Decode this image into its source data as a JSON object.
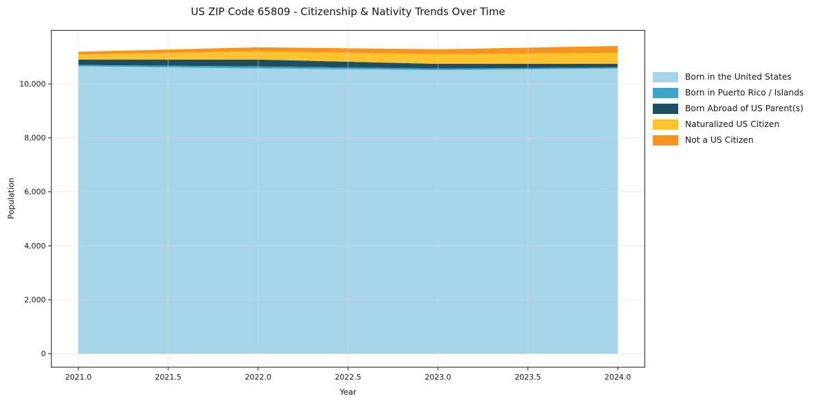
{
  "chart_data": {
    "type": "area",
    "stacked": true,
    "title": "US ZIP Code 65809 - Citizenship & Nativity Trends Over Time",
    "xlabel": "Year",
    "ylabel": "Population",
    "x": [
      2021,
      2022,
      2023,
      2024
    ],
    "series": [
      {
        "name": "Born in the United States",
        "color": "#a6d4e8",
        "values": [
          10650,
          10570,
          10510,
          10570
        ]
      },
      {
        "name": "Born in Puerto Rico / Islands",
        "color": "#3fa5c6",
        "values": [
          50,
          75,
          60,
          40
        ]
      },
      {
        "name": "Born Abroad of US Parent(s)",
        "color": "#1f4e61",
        "values": [
          200,
          255,
          170,
          130
        ]
      },
      {
        "name": "Naturalized US Citizen",
        "color": "#fcc32d",
        "values": [
          190,
          305,
          360,
          410
        ]
      },
      {
        "name": "Not a US Citizen",
        "color": "#f79420",
        "values": [
          100,
          150,
          180,
          255
        ]
      }
    ],
    "totals": [
      11190,
      11355,
      11280,
      11405
    ],
    "xlim": [
      2020.85,
      2024.15
    ],
    "ylim": [
      -500,
      11980
    ],
    "x_ticks": [
      2021.0,
      2021.5,
      2022.0,
      2022.5,
      2023.0,
      2023.5,
      2024.0
    ],
    "x_tick_labels": [
      "2021.0",
      "2021.5",
      "2022.0",
      "2022.5",
      "2023.0",
      "2023.5",
      "2024.0"
    ],
    "y_ticks": [
      0,
      2000,
      4000,
      6000,
      8000,
      10000
    ],
    "y_tick_labels": [
      "0",
      "2,000",
      "4,000",
      "6,000",
      "8,000",
      "10,000"
    ],
    "grid": true,
    "legend_position": "right-outside",
    "colors": {
      "axis": "#262626",
      "grid": "#d9d9d9",
      "text": "#141414",
      "background": "#ffffff"
    }
  }
}
